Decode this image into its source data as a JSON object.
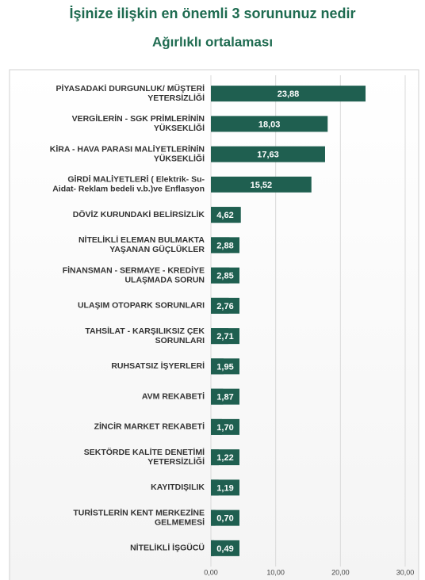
{
  "chart_data": {
    "type": "bar",
    "orientation": "horizontal",
    "title": "İşinize ilişkin en önemli 3 sorununuz nedir",
    "subtitle": "Ağırlıklı ortalaması",
    "categories": [
      [
        "PİYASADAKİ DURGUNLUK/ MÜŞTERİ",
        "YETERSİZLİĞİ"
      ],
      [
        "VERGİLERİN - SGK PRİMLERİNİN",
        "YÜKSEKLİĞİ"
      ],
      [
        "KİRA - HAVA PARASI MALİYETLERİNİN",
        "YÜKSEKLİĞİ"
      ],
      [
        "GİRDİ MALİYETLERİ ( Elektrik- Su-",
        "Aidat- Reklam bedeli v.b.)ve Enflasyon"
      ],
      [
        "DÖVİZ KURUNDAKİ BELİRSİZLİK"
      ],
      [
        "NİTELİKLİ ELEMAN BULMAKTA",
        "YAŞANAN GÜÇLÜKLER"
      ],
      [
        "FİNANSMAN - SERMAYE - KREDİYE",
        "ULAŞMADA SORUN"
      ],
      [
        "ULAŞIM OTOPARK SORUNLARI"
      ],
      [
        "TAHSİLAT - KARŞILIKSIZ ÇEK",
        "SORUNLARI"
      ],
      [
        "RUHSATSIZ İŞYERLERİ"
      ],
      [
        "AVM REKABETİ"
      ],
      [
        "ZİNCİR MARKET REKABETİ"
      ],
      [
        "SEKTÖRDE KALİTE DENETİMİ",
        "YETERSİZLİĞİ"
      ],
      [
        "KAYITDIŞILIK"
      ],
      [
        "TURİSTLERİN KENT MERKEZİNE",
        "GELMEMESİ"
      ],
      [
        "NİTELİKLİ İŞGÜCÜ"
      ]
    ],
    "values": [
      23.88,
      18.03,
      17.63,
      15.52,
      4.62,
      2.88,
      2.85,
      2.76,
      2.71,
      1.95,
      1.87,
      1.7,
      1.22,
      1.19,
      0.7,
      0.49
    ],
    "value_labels": [
      "23,88",
      "18,03",
      "17,63",
      "15,52",
      "4,62",
      "2,88",
      "2,85",
      "2,76",
      "2,71",
      "1,95",
      "1,87",
      "1,70",
      "1,22",
      "1,19",
      "0,70",
      "0,49"
    ],
    "color": "#1f5f50",
    "xlim": [
      0,
      30
    ],
    "xticks": [
      {
        "value": 0,
        "label": "0,00"
      },
      {
        "value": 10,
        "label": "10,00"
      },
      {
        "value": 20,
        "label": "20,00"
      },
      {
        "value": 30,
        "label": "30,00"
      }
    ],
    "grid": true
  }
}
